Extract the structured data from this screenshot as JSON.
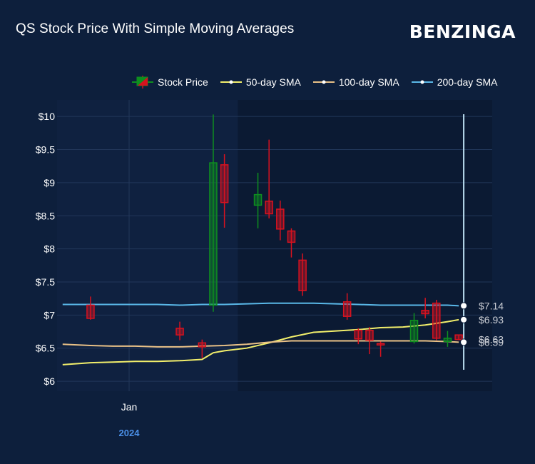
{
  "header": {
    "title": "QS Stock Price With Simple Moving Averages",
    "brand": "BENZINGA"
  },
  "legend": {
    "stock_price": "Stock Price",
    "sma50": "50-day SMA",
    "sma100": "100-day SMA",
    "sma200": "200-day SMA"
  },
  "colors": {
    "background": "#0d1f3c",
    "plot_background": "#0b1a33",
    "up": "#0e8f1f",
    "down": "#d8121f",
    "sma50": "#f2ef6b",
    "sma100": "#e9c187",
    "sma200": "#5ab8e8",
    "crosshair": "#b9dcef"
  },
  "chart_data": {
    "type": "candlestick",
    "title": "QS Stock Price With Simple Moving Averages",
    "ylim": [
      5.85,
      10.25
    ],
    "y_ticks": [
      "$6",
      "$6.5",
      "$7",
      "$7.5",
      "$8",
      "$8.5",
      "$9",
      "$9.5",
      "$10"
    ],
    "x_ticks": [
      {
        "label": "Jan",
        "year": "2024"
      }
    ],
    "grid": true,
    "legend_position": "top",
    "candles": [
      {
        "t": 0,
        "o": 7.15,
        "h": 7.28,
        "l": 6.93,
        "c": 6.95
      },
      {
        "t": 8,
        "o": 6.8,
        "h": 6.9,
        "l": 6.62,
        "c": 6.7
      },
      {
        "t": 10,
        "o": 6.58,
        "h": 6.63,
        "l": 6.35,
        "c": 6.52
      },
      {
        "t": 11,
        "o": 7.15,
        "h": 10.03,
        "l": 7.05,
        "c": 9.3
      },
      {
        "t": 12,
        "o": 9.27,
        "h": 9.43,
        "l": 8.32,
        "c": 8.7
      },
      {
        "t": 15,
        "o": 8.66,
        "h": 9.15,
        "l": 8.31,
        "c": 8.82
      },
      {
        "t": 16,
        "o": 8.72,
        "h": 9.65,
        "l": 8.46,
        "c": 8.53
      },
      {
        "t": 17,
        "o": 8.6,
        "h": 8.73,
        "l": 8.13,
        "c": 8.3
      },
      {
        "t": 18,
        "o": 8.27,
        "h": 8.31,
        "l": 7.87,
        "c": 8.1
      },
      {
        "t": 19,
        "o": 7.83,
        "h": 7.93,
        "l": 7.29,
        "c": 7.37
      },
      {
        "t": 23,
        "o": 7.2,
        "h": 7.33,
        "l": 6.93,
        "c": 6.98
      },
      {
        "t": 24,
        "o": 6.77,
        "h": 6.8,
        "l": 6.56,
        "c": 6.64
      },
      {
        "t": 25,
        "o": 6.77,
        "h": 6.82,
        "l": 6.41,
        "c": 6.62
      },
      {
        "t": 26,
        "o": 6.57,
        "h": 6.6,
        "l": 6.37,
        "c": 6.55
      },
      {
        "t": 29,
        "o": 6.6,
        "h": 7.03,
        "l": 6.57,
        "c": 6.92
      },
      {
        "t": 30,
        "o": 7.07,
        "h": 7.26,
        "l": 6.95,
        "c": 7.02
      },
      {
        "t": 31,
        "o": 7.18,
        "h": 7.23,
        "l": 6.62,
        "c": 6.65
      },
      {
        "t": 32,
        "o": 6.6,
        "h": 6.76,
        "l": 6.52,
        "c": 6.65
      },
      {
        "t": 33,
        "o": 6.7,
        "h": 6.7,
        "l": 6.62,
        "c": 6.63
      }
    ],
    "series": [
      {
        "name": "50-day SMA",
        "x": [
          -2.5,
          0,
          2,
          4,
          6,
          8,
          10,
          11,
          12,
          14,
          16,
          18,
          20,
          22,
          24,
          26,
          28,
          30,
          32,
          33
        ],
        "y": [
          6.25,
          6.28,
          6.29,
          6.3,
          6.3,
          6.31,
          6.33,
          6.43,
          6.46,
          6.5,
          6.58,
          6.67,
          6.74,
          6.76,
          6.78,
          6.81,
          6.82,
          6.85,
          6.9,
          6.93
        ]
      },
      {
        "name": "100-day SMA",
        "x": [
          -2.5,
          0,
          2,
          4,
          6,
          8,
          10,
          12,
          14,
          16,
          18,
          20,
          22,
          24,
          26,
          28,
          30,
          32,
          33
        ],
        "y": [
          6.56,
          6.54,
          6.53,
          6.53,
          6.52,
          6.52,
          6.53,
          6.54,
          6.56,
          6.59,
          6.61,
          6.61,
          6.61,
          6.61,
          6.61,
          6.61,
          6.61,
          6.6,
          6.59
        ]
      },
      {
        "name": "200-day SMA",
        "x": [
          -2.5,
          0,
          2,
          4,
          6,
          8,
          10,
          12,
          14,
          16,
          18,
          20,
          22,
          24,
          26,
          28,
          30,
          32,
          33
        ],
        "y": [
          7.16,
          7.16,
          7.16,
          7.16,
          7.16,
          7.15,
          7.16,
          7.16,
          7.17,
          7.18,
          7.18,
          7.18,
          7.17,
          7.16,
          7.15,
          7.15,
          7.15,
          7.15,
          7.14
        ]
      }
    ],
    "end_labels": [
      {
        "series": "200-day SMA",
        "value": 7.14,
        "text": "$7.14"
      },
      {
        "series": "50-day SMA",
        "value": 6.93,
        "text": "$6.93"
      },
      {
        "series": "Stock Price",
        "value": 6.63,
        "text": "$6.63"
      },
      {
        "series": "100-day SMA",
        "value": 6.59,
        "text": "$6.59"
      }
    ]
  }
}
